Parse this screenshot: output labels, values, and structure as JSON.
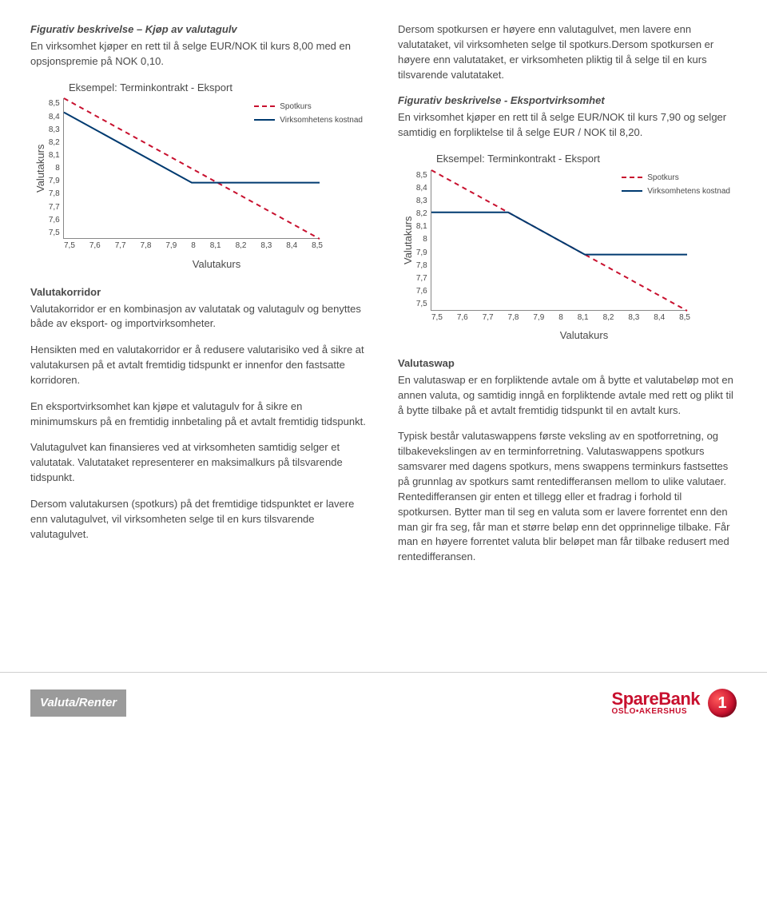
{
  "left": {
    "fig_heading": "Figurativ beskrivelse – Kjøp av valutagulv",
    "intro": "En virksomhet kjøper en rett til å selge EUR/NOK til kurs 8,00 med en opsjonspremie på NOK 0,10.",
    "valutakorridor_title": "Valutakorridor",
    "p1": "Valutakorridor er en kombinasjon av valutatak og valutagulv og benyttes både av eksport- og importvirksomheter.",
    "p2": "Hensikten med en valutakorridor er å redusere valutarisiko ved å sikre at valutakursen på et avtalt fremtidig tidspunkt er innenfor den fastsatte korridoren.",
    "p3": "En eksportvirksomhet kan kjøpe et valutagulv for å sikre en minimumskurs på en fremtidig innbetaling på et avtalt fremtidig tidspunkt.",
    "p4": "Valutagulvet kan finansieres ved at virksomheten samtidig selger et valutatak. Valutataket representerer en maksimalkurs på tilsvarende tidspunkt.",
    "p5": "Dersom valutakursen (spotkurs) på det fremtidige tidspunktet er lavere enn valutagulvet, vil virksomheten selge til en kurs tilsvarende valutagulvet."
  },
  "right": {
    "p1": "Dersom spotkursen er høyere enn valutagulvet, men lavere enn valutataket, vil virksomheten selge til spotkurs.Dersom spotkursen er høyere enn valutataket, er virksomheten pliktig til å selge til en kurs tilsvarende valutataket.",
    "fig_heading": "Figurativ beskrivelse - Eksportvirksomhet",
    "p2": "En virksomhet kjøper en rett til å selge EUR/NOK til kurs 7,90 og selger samtidig en forpliktelse til å selge EUR / NOK til 8,20.",
    "valutaswap_title": "Valutaswap",
    "p3": "En valutaswap er en forpliktende avtale om å bytte et valutabeløp mot en annen valuta, og samtidig inngå en forpliktende avtale med rett og plikt til å bytte tilbake på et avtalt fremtidig tidspunkt til en avtalt kurs.",
    "p4": "Typisk består valutaswappens første veksling av en spotforretning, og tilbakevekslingen av en terminforretning. Valutaswappens spotkurs samsvarer med dagens spotkurs, mens swappens terminkurs fastsettes på grunnlag av spotkurs samt rentedifferansen mellom to ulike valutaer. Rentedifferansen gir enten et tillegg eller et fradrag i forhold til spotkursen. Bytter man til seg en valuta som er lavere forrentet enn den man gir fra seg, får man et større beløp enn det opprinnelige tilbake. Får man en høyere forrentet valuta blir beløpet man får tilbake redusert med rentedifferansen."
  },
  "chart1": {
    "type": "line",
    "title": "Eksempel: Terminkontrakt - Eksport",
    "ylabel": "Valutakurs",
    "xlabel": "Valutakurs",
    "yticks": [
      "8,5",
      "8,4",
      "8,3",
      "8,2",
      "8,1",
      "8",
      "7,9",
      "7,8",
      "7,7",
      "7,6",
      "7,5"
    ],
    "xticks": [
      "7,5",
      "7,6",
      "7,7",
      "7,8",
      "7,9",
      "8",
      "8,1",
      "8,2",
      "8,3",
      "8,4",
      "8,5"
    ],
    "ylim": [
      7.5,
      8.5
    ],
    "xlim": [
      7.5,
      8.5
    ],
    "spot_color": "#c8102e",
    "solid_color": "#003a70",
    "background": "#ffffff",
    "axis_color": "#888888",
    "legend": {
      "spot": "Spotkurs",
      "cost": "Virksomhetens kostnad"
    },
    "spot_points": [
      [
        7.5,
        8.5
      ],
      [
        8.5,
        7.5
      ]
    ],
    "solid_points": [
      [
        7.5,
        8.4
      ],
      [
        8.0,
        7.9
      ],
      [
        8.5,
        7.9
      ]
    ],
    "line_width": 2
  },
  "chart2": {
    "type": "line",
    "title": "Eksempel: Terminkontrakt - Eksport",
    "ylabel": "Valutakurs",
    "xlabel": "Valutakurs",
    "yticks": [
      "8,5",
      "8,4",
      "8,3",
      "8,2",
      "8,1",
      "8",
      "7,9",
      "7,8",
      "7,7",
      "7,6",
      "7,5"
    ],
    "xticks": [
      "7,5",
      "7,6",
      "7,7",
      "7,8",
      "7,9",
      "8",
      "8,1",
      "8,2",
      "8,3",
      "8,4",
      "8,5"
    ],
    "ylim": [
      7.5,
      8.5
    ],
    "xlim": [
      7.5,
      8.5
    ],
    "spot_color": "#c8102e",
    "solid_color": "#003a70",
    "background": "#ffffff",
    "axis_color": "#888888",
    "legend": {
      "spot": "Spotkurs",
      "cost": "Virksomhetens kostnad"
    },
    "spot_points": [
      [
        7.5,
        8.5
      ],
      [
        8.5,
        7.5
      ]
    ],
    "solid_points": [
      [
        7.5,
        8.2
      ],
      [
        7.8,
        8.2
      ],
      [
        8.1,
        7.9
      ],
      [
        8.5,
        7.9
      ]
    ],
    "line_width": 2
  },
  "footer": {
    "tag": "Valuta/Renter",
    "brand_main": "SpareBank",
    "brand_sub": "OSLO•AKERSHUS",
    "badge": "1",
    "brand_color": "#c8102e"
  }
}
